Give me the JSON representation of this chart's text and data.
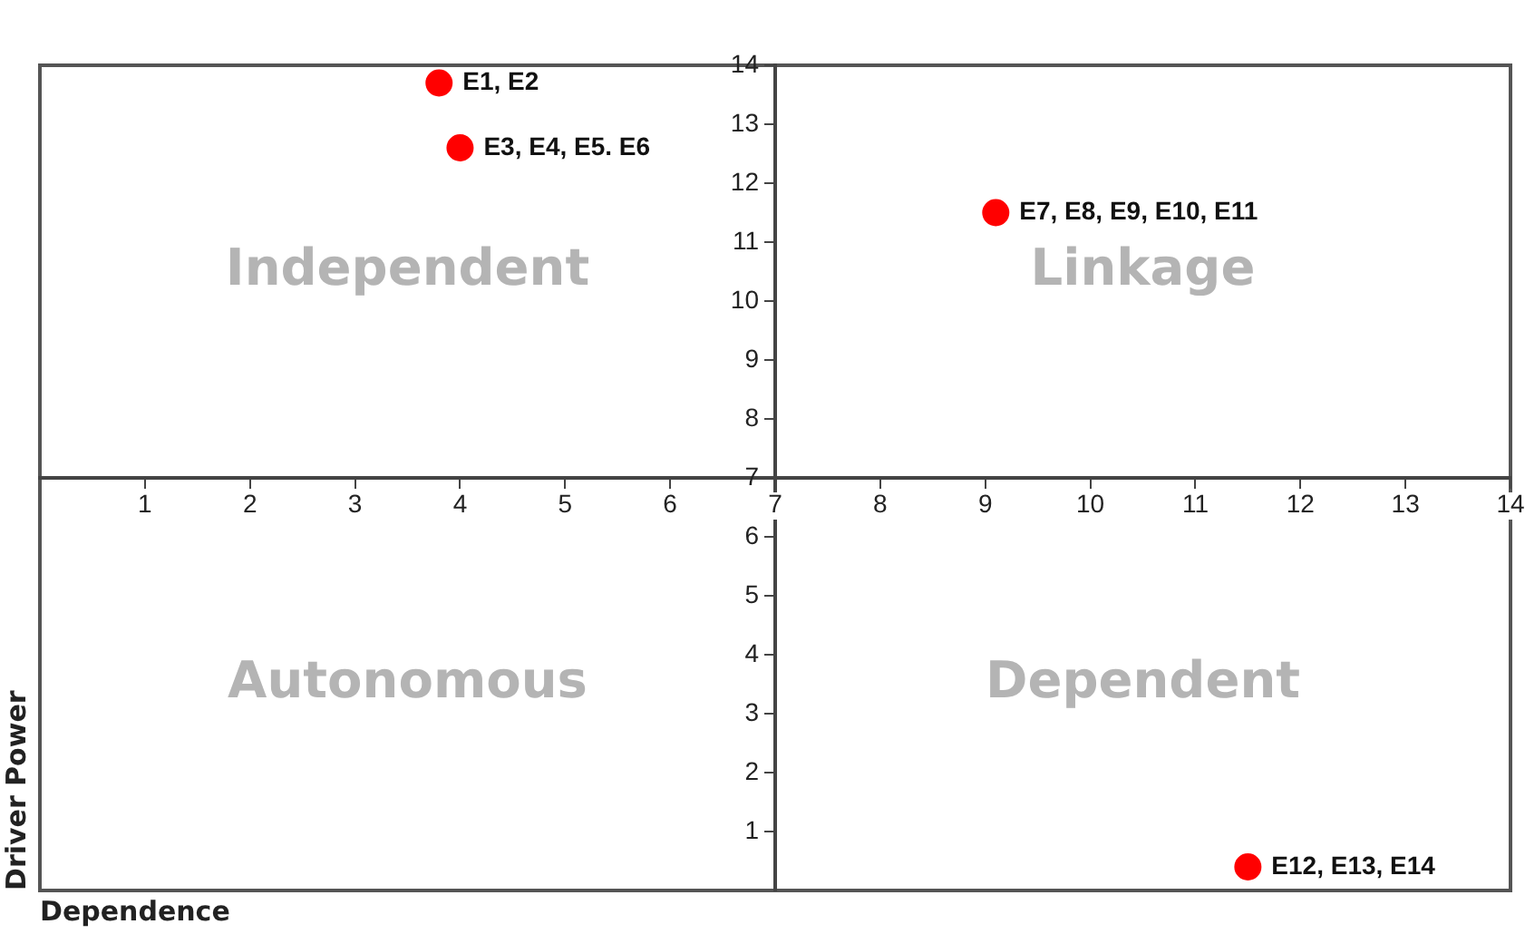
{
  "chart_data": {
    "type": "scatter",
    "xlabel": "Dependence",
    "ylabel": "Driver Power",
    "x": [
      3.8,
      4.0,
      9.1,
      11.5
    ],
    "values": [
      13.7,
      12.6,
      11.5,
      0.4
    ],
    "color": "#ff0000",
    "marker": "circle",
    "xlim": [
      0,
      14
    ],
    "ylim": [
      0,
      14
    ],
    "xticks": [
      1,
      2,
      3,
      4,
      5,
      6,
      7,
      8,
      9,
      10,
      11,
      12,
      13,
      14
    ],
    "yticks": [
      1,
      2,
      3,
      4,
      5,
      6,
      7,
      8,
      9,
      10,
      11,
      12,
      13,
      14
    ],
    "grid": false,
    "legend": false,
    "annotations": [
      {
        "text": "E1, E2",
        "x": 3.8,
        "y": 13.7
      },
      {
        "text": "E3, E4, E5. E6",
        "x": 4.0,
        "y": 12.6
      },
      {
        "text": "E7, E8, E9, E10, E11",
        "x": 9.1,
        "y": 11.5
      },
      {
        "text": "E12, E13, E14",
        "x": 11.5,
        "y": 0.4
      },
      "Independent",
      "Linkage",
      "Autonomous",
      "Dependent"
    ]
  }
}
